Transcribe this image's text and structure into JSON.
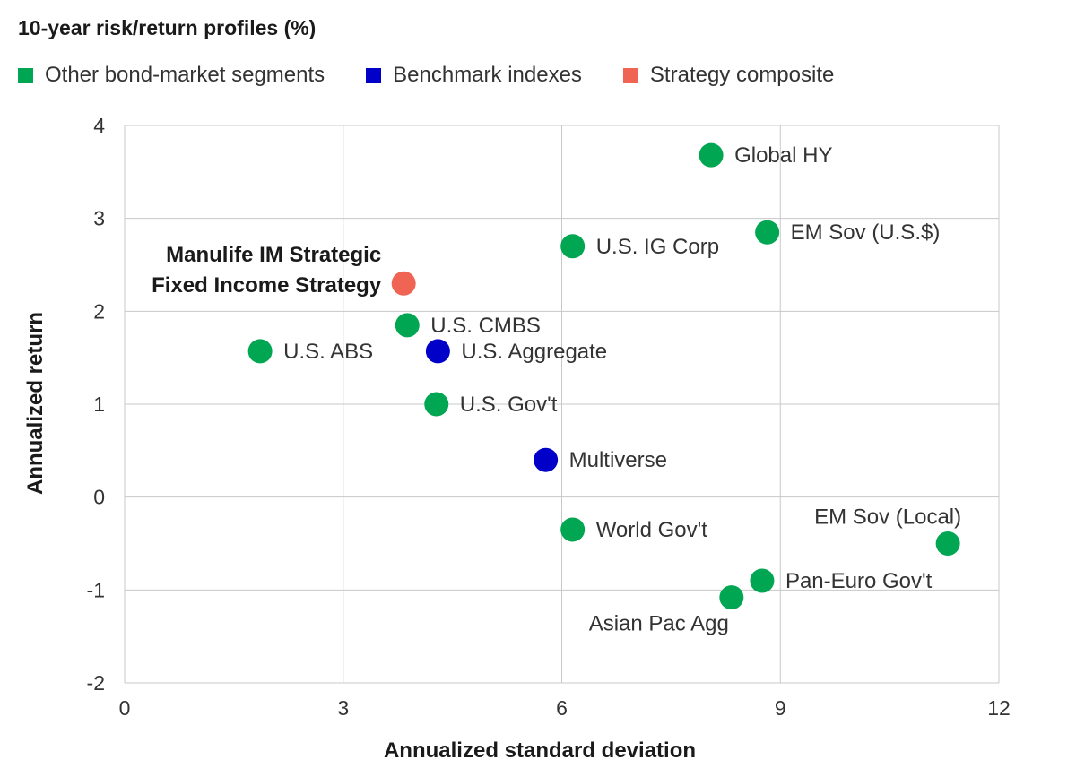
{
  "chart_data": {
    "type": "scatter",
    "title": "10-year risk/return profiles (%)",
    "xlabel": "Annualized standard deviation",
    "ylabel": "Annualized return",
    "xlim": [
      0,
      12
    ],
    "ylim": [
      -2,
      4
    ],
    "xticks": [
      0,
      3,
      6,
      9,
      12
    ],
    "yticks": [
      -2,
      -1,
      0,
      1,
      2,
      3,
      4
    ],
    "grid": true,
    "legend_position": "top-left",
    "categories": [
      {
        "key": "other",
        "label": "Other bond-market segments",
        "color": "#00a651"
      },
      {
        "key": "benchmark",
        "label": "Benchmark indexes",
        "color": "#0000c8"
      },
      {
        "key": "strategy",
        "label": "Strategy composite",
        "color": "#f06454"
      }
    ],
    "points": [
      {
        "label": "Global HY",
        "x": 8.05,
        "y": 3.68,
        "group": "other",
        "label_pos": "right"
      },
      {
        "label": "EM Sov (U.S.$)",
        "x": 8.82,
        "y": 2.85,
        "group": "other",
        "label_pos": "right"
      },
      {
        "label": "U.S. IG Corp",
        "x": 6.15,
        "y": 2.7,
        "group": "other",
        "label_pos": "right"
      },
      {
        "label": [
          "Manulife IM Strategic",
          "Fixed Income Strategy"
        ],
        "x": 3.83,
        "y": 2.3,
        "group": "strategy",
        "label_pos": "left-bold"
      },
      {
        "label": "U.S. CMBS",
        "x": 3.88,
        "y": 1.85,
        "group": "other",
        "label_pos": "right"
      },
      {
        "label": "U.S. ABS",
        "x": 1.86,
        "y": 1.57,
        "group": "other",
        "label_pos": "right"
      },
      {
        "label": "U.S. Aggregate",
        "x": 4.3,
        "y": 1.57,
        "group": "benchmark",
        "label_pos": "right"
      },
      {
        "label": "U.S. Gov't",
        "x": 4.28,
        "y": 1.0,
        "group": "other",
        "label_pos": "right"
      },
      {
        "label": "Multiverse",
        "x": 5.78,
        "y": 0.4,
        "group": "benchmark",
        "label_pos": "right"
      },
      {
        "label": "World Gov't",
        "x": 6.15,
        "y": -0.35,
        "group": "other",
        "label_pos": "right"
      },
      {
        "label": "EM Sov (Local)",
        "x": 11.3,
        "y": -0.5,
        "group": "other",
        "label_pos": "above-left"
      },
      {
        "label": "Pan-Euro Gov't",
        "x": 8.75,
        "y": -0.9,
        "group": "other",
        "label_pos": "right"
      },
      {
        "label": "Asian Pac Agg",
        "x": 8.33,
        "y": -1.08,
        "group": "other",
        "label_pos": "below-left"
      }
    ]
  }
}
